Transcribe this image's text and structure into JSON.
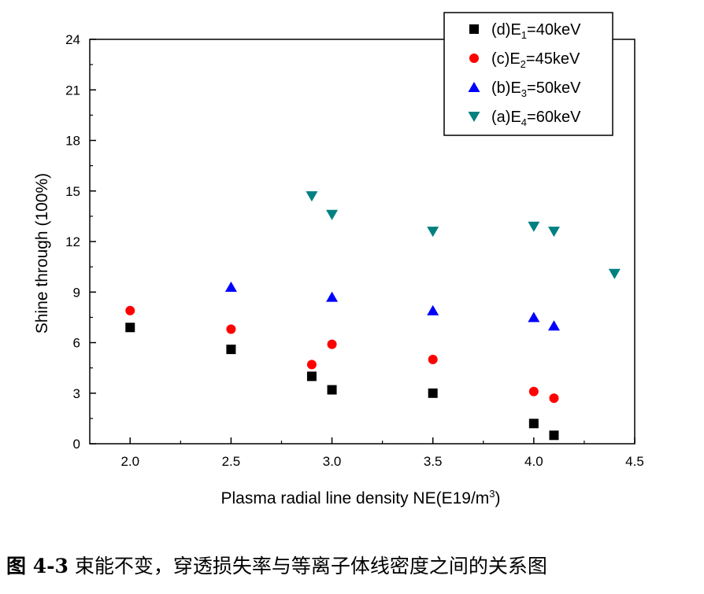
{
  "chart_data": {
    "type": "scatter",
    "xlabel": "Plasma radial line density NE(E19/m",
    "xlabel_sup": "3",
    "xlabel_tail": ")",
    "ylabel": "Shine through (100%)",
    "xlim": [
      1.8,
      4.5
    ],
    "ylim": [
      0,
      24
    ],
    "x_ticks": [
      "2.0",
      "2.5",
      "3.0",
      "3.5",
      "4.0",
      "4.5"
    ],
    "y_ticks": [
      "0",
      "3",
      "6",
      "9",
      "12",
      "15",
      "18",
      "21",
      "24"
    ],
    "grid": false,
    "legend_position": "top-right",
    "series": [
      {
        "label_prefix": "(d)E",
        "label_sub": "1",
        "label_suffix": "=40keV",
        "marker": "square",
        "color": "#000000",
        "points": [
          [
            2.0,
            6.9
          ],
          [
            2.5,
            5.6
          ],
          [
            2.9,
            4.0
          ],
          [
            3.0,
            3.2
          ],
          [
            3.5,
            3.0
          ],
          [
            4.0,
            1.2
          ],
          [
            4.1,
            0.5
          ]
        ]
      },
      {
        "label_prefix": "(c)E",
        "label_sub": "2",
        "label_suffix": "=45keV",
        "marker": "circle",
        "color": "#ff0000",
        "points": [
          [
            2.0,
            7.9
          ],
          [
            2.5,
            6.8
          ],
          [
            2.9,
            4.7
          ],
          [
            3.0,
            5.9
          ],
          [
            3.5,
            5.0
          ],
          [
            4.0,
            3.1
          ],
          [
            4.1,
            2.7
          ]
        ]
      },
      {
        "label_prefix": "(b)E",
        "label_sub": "3",
        "label_suffix": "=50keV",
        "marker": "triangle-up",
        "color": "#0000ff",
        "points": [
          [
            2.5,
            9.3
          ],
          [
            3.0,
            8.7
          ],
          [
            3.5,
            7.9
          ],
          [
            4.0,
            7.5
          ],
          [
            4.1,
            7.0
          ]
        ]
      },
      {
        "label_prefix": "(a)E",
        "label_sub": "4",
        "label_suffix": "=60keV",
        "marker": "triangle-down",
        "color": "#008080",
        "points": [
          [
            2.9,
            14.7
          ],
          [
            3.0,
            13.6
          ],
          [
            3.5,
            12.6
          ],
          [
            4.0,
            12.9
          ],
          [
            4.1,
            12.6
          ],
          [
            4.4,
            10.1
          ]
        ]
      }
    ]
  },
  "caption": {
    "number": "图 4-3",
    "text": "束能不变，穿透损失率与等离子体线密度之间的关系图"
  }
}
